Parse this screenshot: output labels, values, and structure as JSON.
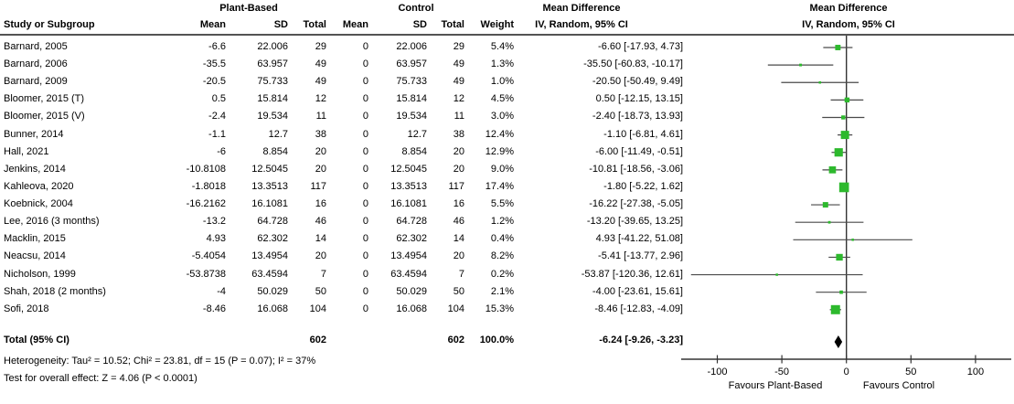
{
  "header": {
    "study_col": "Study or Subgroup",
    "group1": "Plant-Based",
    "group2": "Control",
    "col_mean": "Mean",
    "col_sd": "SD",
    "col_total": "Total",
    "col_weight": "Weight",
    "md_line1": "Mean Difference",
    "md_line2": "IV, Random, 95% CI"
  },
  "chart_data": {
    "type": "forest",
    "effect_measure": "Mean Difference, IV, Random, 95% CI",
    "studies": [
      {
        "name": "Barnard, 2005",
        "mean1": "-6.6",
        "sd1": "22.006",
        "total1": "29",
        "mean2": "0",
        "sd2": "22.006",
        "total2": "29",
        "weight": "5.4%",
        "ci_text": "-6.60 [-17.93, 4.73]",
        "est": -6.6,
        "lo": -17.93,
        "hi": 4.73,
        "w": 5.4
      },
      {
        "name": "Barnard, 2006",
        "mean1": "-35.5",
        "sd1": "63.957",
        "total1": "49",
        "mean2": "0",
        "sd2": "63.957",
        "total2": "49",
        "weight": "1.3%",
        "ci_text": "-35.50 [-60.83, -10.17]",
        "est": -35.5,
        "lo": -60.83,
        "hi": -10.17,
        "w": 1.3
      },
      {
        "name": "Barnard, 2009",
        "mean1": "-20.5",
        "sd1": "75.733",
        "total1": "49",
        "mean2": "0",
        "sd2": "75.733",
        "total2": "49",
        "weight": "1.0%",
        "ci_text": "-20.50 [-50.49, 9.49]",
        "est": -20.5,
        "lo": -50.49,
        "hi": 9.49,
        "w": 1.0
      },
      {
        "name": "Bloomer, 2015 (T)",
        "mean1": "0.5",
        "sd1": "15.814",
        "total1": "12",
        "mean2": "0",
        "sd2": "15.814",
        "total2": "12",
        "weight": "4.5%",
        "ci_text": "0.50 [-12.15, 13.15]",
        "est": 0.5,
        "lo": -12.15,
        "hi": 13.15,
        "w": 4.5
      },
      {
        "name": "Bloomer, 2015 (V)",
        "mean1": "-2.4",
        "sd1": "19.534",
        "total1": "11",
        "mean2": "0",
        "sd2": "19.534",
        "total2": "11",
        "weight": "3.0%",
        "ci_text": "-2.40 [-18.73, 13.93]",
        "est": -2.4,
        "lo": -18.73,
        "hi": 13.93,
        "w": 3.0
      },
      {
        "name": "Bunner, 2014",
        "mean1": "-1.1",
        "sd1": "12.7",
        "total1": "38",
        "mean2": "0",
        "sd2": "12.7",
        "total2": "38",
        "weight": "12.4%",
        "ci_text": "-1.10 [-6.81, 4.61]",
        "est": -1.1,
        "lo": -6.81,
        "hi": 4.61,
        "w": 12.4
      },
      {
        "name": "Hall, 2021",
        "mean1": "-6",
        "sd1": "8.854",
        "total1": "20",
        "mean2": "0",
        "sd2": "8.854",
        "total2": "20",
        "weight": "12.9%",
        "ci_text": "-6.00 [-11.49, -0.51]",
        "est": -6.0,
        "lo": -11.49,
        "hi": -0.51,
        "w": 12.9
      },
      {
        "name": "Jenkins, 2014",
        "mean1": "-10.8108",
        "sd1": "12.5045",
        "total1": "20",
        "mean2": "0",
        "sd2": "12.5045",
        "total2": "20",
        "weight": "9.0%",
        "ci_text": "-10.81 [-18.56, -3.06]",
        "est": -10.81,
        "lo": -18.56,
        "hi": -3.06,
        "w": 9.0
      },
      {
        "name": "Kahleova, 2020",
        "mean1": "-1.8018",
        "sd1": "13.3513",
        "total1": "117",
        "mean2": "0",
        "sd2": "13.3513",
        "total2": "117",
        "weight": "17.4%",
        "ci_text": "-1.80 [-5.22, 1.62]",
        "est": -1.8,
        "lo": -5.22,
        "hi": 1.62,
        "w": 17.4
      },
      {
        "name": "Koebnick, 2004",
        "mean1": "-16.2162",
        "sd1": "16.1081",
        "total1": "16",
        "mean2": "0",
        "sd2": "16.1081",
        "total2": "16",
        "weight": "5.5%",
        "ci_text": "-16.22 [-27.38, -5.05]",
        "est": -16.22,
        "lo": -27.38,
        "hi": -5.05,
        "w": 5.5
      },
      {
        "name": "Lee, 2016 (3 months)",
        "mean1": "-13.2",
        "sd1": "64.728",
        "total1": "46",
        "mean2": "0",
        "sd2": "64.728",
        "total2": "46",
        "weight": "1.2%",
        "ci_text": "-13.20 [-39.65, 13.25]",
        "est": -13.2,
        "lo": -39.65,
        "hi": 13.25,
        "w": 1.2
      },
      {
        "name": "Macklin, 2015",
        "mean1": "4.93",
        "sd1": "62.302",
        "total1": "14",
        "mean2": "0",
        "sd2": "62.302",
        "total2": "14",
        "weight": "0.4%",
        "ci_text": "4.93 [-41.22, 51.08]",
        "est": 4.93,
        "lo": -41.22,
        "hi": 51.08,
        "w": 0.4
      },
      {
        "name": "Neacsu, 2014",
        "mean1": "-5.4054",
        "sd1": "13.4954",
        "total1": "20",
        "mean2": "0",
        "sd2": "13.4954",
        "total2": "20",
        "weight": "8.2%",
        "ci_text": "-5.41 [-13.77, 2.96]",
        "est": -5.41,
        "lo": -13.77,
        "hi": 2.96,
        "w": 8.2
      },
      {
        "name": "Nicholson, 1999",
        "mean1": "-53.8738",
        "sd1": "63.4594",
        "total1": "7",
        "mean2": "0",
        "sd2": "63.4594",
        "total2": "7",
        "weight": "0.2%",
        "ci_text": "-53.87 [-120.36, 12.61]",
        "est": -53.87,
        "lo": -120.36,
        "hi": 12.61,
        "w": 0.2
      },
      {
        "name": "Shah, 2018 (2 months)",
        "mean1": "-4",
        "sd1": "50.029",
        "total1": "50",
        "mean2": "0",
        "sd2": "50.029",
        "total2": "50",
        "weight": "2.1%",
        "ci_text": "-4.00 [-23.61, 15.61]",
        "est": -4.0,
        "lo": -23.61,
        "hi": 15.61,
        "w": 2.1
      },
      {
        "name": "Sofi, 2018",
        "mean1": "-8.46",
        "sd1": "16.068",
        "total1": "104",
        "mean2": "0",
        "sd2": "16.068",
        "total2": "104",
        "weight": "15.3%",
        "ci_text": "-8.46 [-12.83, -4.09]",
        "est": -8.46,
        "lo": -12.83,
        "hi": -4.09,
        "w": 15.3
      }
    ],
    "total": {
      "label": "Total (95% CI)",
      "total1": "602",
      "total2": "602",
      "weight": "100.0%",
      "ci_text": "-6.24 [-9.26, -3.23]",
      "est": -6.24,
      "lo": -9.26,
      "hi": -3.23
    },
    "axis": {
      "ticks": [
        -100,
        -50,
        0,
        50,
        100
      ],
      "min": -124,
      "max": 128,
      "favours_left": "Favours Plant-Based",
      "favours_right": "Favours Control"
    }
  },
  "footer": {
    "heterogeneity": "Heterogeneity: Tau² = 10.52; Chi² = 23.81, df = 15 (P = 0.07); I² = 37%",
    "overall_effect": "Test for overall effect: Z = 4.06 (P < 0.0001)"
  },
  "colors": {
    "marker": "#2db92d",
    "ci_line": "#4a4a4a",
    "axis_line": "#333333",
    "rule": "#1a1a1a",
    "diamond": "#000000"
  }
}
